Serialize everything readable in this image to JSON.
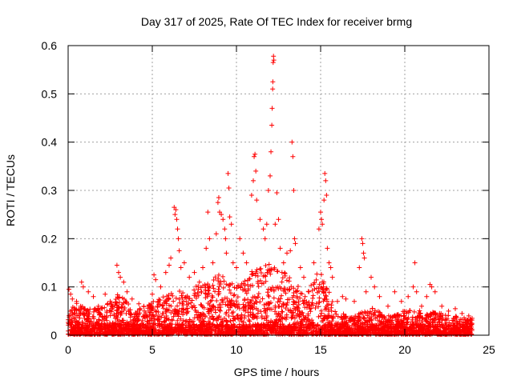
{
  "chart_data": {
    "type": "scatter",
    "title": "Day 317 of 2025, Rate Of TEC Index for receiver brmg",
    "xlabel": "GPS time / hours",
    "ylabel": "ROTI / TECUs",
    "xlim": [
      0,
      25
    ],
    "ylim": [
      0,
      0.6
    ],
    "xticks": [
      "0",
      "5",
      "10",
      "15",
      "20",
      "25"
    ],
    "yticks": [
      "0",
      "0.1",
      "0.2",
      "0.3",
      "0.4",
      "0.5",
      "0.6"
    ],
    "grid": true,
    "marker": "+",
    "color": "#ff0000",
    "points": [
      [
        0.05,
        0.095
      ],
      [
        0.15,
        0.085
      ],
      [
        0.25,
        0.075
      ],
      [
        0.5,
        0.07
      ],
      [
        0.8,
        0.11
      ],
      [
        0.9,
        0.1
      ],
      [
        1.2,
        0.09
      ],
      [
        1.5,
        0.08
      ],
      [
        1.8,
        0.06
      ],
      [
        2.2,
        0.085
      ],
      [
        2.5,
        0.07
      ],
      [
        2.9,
        0.145
      ],
      [
        3.0,
        0.13
      ],
      [
        3.1,
        0.12
      ],
      [
        3.3,
        0.11
      ],
      [
        3.5,
        0.09
      ],
      [
        3.8,
        0.075
      ],
      [
        4.2,
        0.065
      ],
      [
        4.5,
        0.06
      ],
      [
        4.8,
        0.06
      ],
      [
        5.0,
        0.085
      ],
      [
        5.1,
        0.125
      ],
      [
        5.2,
        0.115
      ],
      [
        5.5,
        0.1
      ],
      [
        5.8,
        0.13
      ],
      [
        6.0,
        0.145
      ],
      [
        6.1,
        0.16
      ],
      [
        6.3,
        0.265
      ],
      [
        6.35,
        0.25
      ],
      [
        6.4,
        0.26
      ],
      [
        6.45,
        0.24
      ],
      [
        6.5,
        0.22
      ],
      [
        6.55,
        0.2
      ],
      [
        6.6,
        0.175
      ],
      [
        6.7,
        0.14
      ],
      [
        6.9,
        0.15
      ],
      [
        7.2,
        0.12
      ],
      [
        7.5,
        0.13
      ],
      [
        7.8,
        0.11
      ],
      [
        7.9,
        0.09
      ],
      [
        8.0,
        0.14
      ],
      [
        8.2,
        0.18
      ],
      [
        8.3,
        0.255
      ],
      [
        8.4,
        0.2
      ],
      [
        8.6,
        0.15
      ],
      [
        8.8,
        0.21
      ],
      [
        8.9,
        0.275
      ],
      [
        8.95,
        0.285
      ],
      [
        9.0,
        0.255
      ],
      [
        9.1,
        0.25
      ],
      [
        9.2,
        0.24
      ],
      [
        9.3,
        0.22
      ],
      [
        9.35,
        0.2
      ],
      [
        9.4,
        0.17
      ],
      [
        9.5,
        0.335
      ],
      [
        9.55,
        0.305
      ],
      [
        9.6,
        0.245
      ],
      [
        9.7,
        0.23
      ],
      [
        9.8,
        0.15
      ],
      [
        10.0,
        0.14
      ],
      [
        10.2,
        0.2
      ],
      [
        10.4,
        0.17
      ],
      [
        10.6,
        0.15
      ],
      [
        10.9,
        0.29
      ],
      [
        11.0,
        0.32
      ],
      [
        11.05,
        0.37
      ],
      [
        11.1,
        0.375
      ],
      [
        11.15,
        0.34
      ],
      [
        11.2,
        0.28
      ],
      [
        11.4,
        0.24
      ],
      [
        11.6,
        0.22
      ],
      [
        11.7,
        0.2
      ],
      [
        11.8,
        0.23
      ],
      [
        11.9,
        0.3
      ],
      [
        12.0,
        0.33
      ],
      [
        12.05,
        0.38
      ],
      [
        12.1,
        0.435
      ],
      [
        12.12,
        0.47
      ],
      [
        12.15,
        0.51
      ],
      [
        12.16,
        0.525
      ],
      [
        12.18,
        0.565
      ],
      [
        12.2,
        0.578
      ],
      [
        12.22,
        0.57
      ],
      [
        12.3,
        0.23
      ],
      [
        12.4,
        0.295
      ],
      [
        12.5,
        0.24
      ],
      [
        12.6,
        0.18
      ],
      [
        12.8,
        0.15
      ],
      [
        13.0,
        0.17
      ],
      [
        13.2,
        0.175
      ],
      [
        13.3,
        0.4
      ],
      [
        13.35,
        0.37
      ],
      [
        13.4,
        0.3
      ],
      [
        13.45,
        0.2
      ],
      [
        13.5,
        0.19
      ],
      [
        13.8,
        0.14
      ],
      [
        14.0,
        0.12
      ],
      [
        14.3,
        0.09
      ],
      [
        14.6,
        0.15
      ],
      [
        14.9,
        0.22
      ],
      [
        15.0,
        0.255
      ],
      [
        15.05,
        0.24
      ],
      [
        15.1,
        0.23
      ],
      [
        15.2,
        0.28
      ],
      [
        15.25,
        0.335
      ],
      [
        15.3,
        0.32
      ],
      [
        15.35,
        0.29
      ],
      [
        15.4,
        0.18
      ],
      [
        15.5,
        0.15
      ],
      [
        15.6,
        0.14
      ],
      [
        15.7,
        0.12
      ],
      [
        16.0,
        0.07
      ],
      [
        16.3,
        0.08
      ],
      [
        16.5,
        0.075
      ],
      [
        17.0,
        0.07
      ],
      [
        17.3,
        0.14
      ],
      [
        17.45,
        0.2
      ],
      [
        17.5,
        0.19
      ],
      [
        17.55,
        0.17
      ],
      [
        17.6,
        0.16
      ],
      [
        17.7,
        0.09
      ],
      [
        18.0,
        0.12
      ],
      [
        18.2,
        0.1
      ],
      [
        18.5,
        0.08
      ],
      [
        19.0,
        0.06
      ],
      [
        19.4,
        0.09
      ],
      [
        19.8,
        0.07
      ],
      [
        20.2,
        0.08
      ],
      [
        20.5,
        0.1
      ],
      [
        20.6,
        0.15
      ],
      [
        20.7,
        0.09
      ],
      [
        21.0,
        0.06
      ],
      [
        21.3,
        0.08
      ],
      [
        21.5,
        0.105
      ],
      [
        21.6,
        0.1
      ],
      [
        21.8,
        0.09
      ],
      [
        22.2,
        0.06
      ],
      [
        22.6,
        0.05
      ],
      [
        23.0,
        0.055
      ],
      [
        23.4,
        0.045
      ],
      [
        23.8,
        0.04
      ],
      [
        24.0,
        0.035
      ]
    ],
    "density_envelope": [
      [
        0,
        0.04
      ],
      [
        0.5,
        0.06
      ],
      [
        1,
        0.05
      ],
      [
        2,
        0.05
      ],
      [
        3,
        0.075
      ],
      [
        4,
        0.045
      ],
      [
        5,
        0.06
      ],
      [
        6,
        0.075
      ],
      [
        7,
        0.085
      ],
      [
        8,
        0.09
      ],
      [
        9,
        0.11
      ],
      [
        10,
        0.09
      ],
      [
        11,
        0.12
      ],
      [
        12,
        0.13
      ],
      [
        13,
        0.11
      ],
      [
        14,
        0.08
      ],
      [
        15,
        0.12
      ],
      [
        16,
        0.04
      ],
      [
        17,
        0.035
      ],
      [
        18,
        0.05
      ],
      [
        19,
        0.035
      ],
      [
        20,
        0.045
      ],
      [
        21,
        0.045
      ],
      [
        22,
        0.04
      ],
      [
        23,
        0.035
      ],
      [
        24,
        0.03
      ]
    ]
  }
}
